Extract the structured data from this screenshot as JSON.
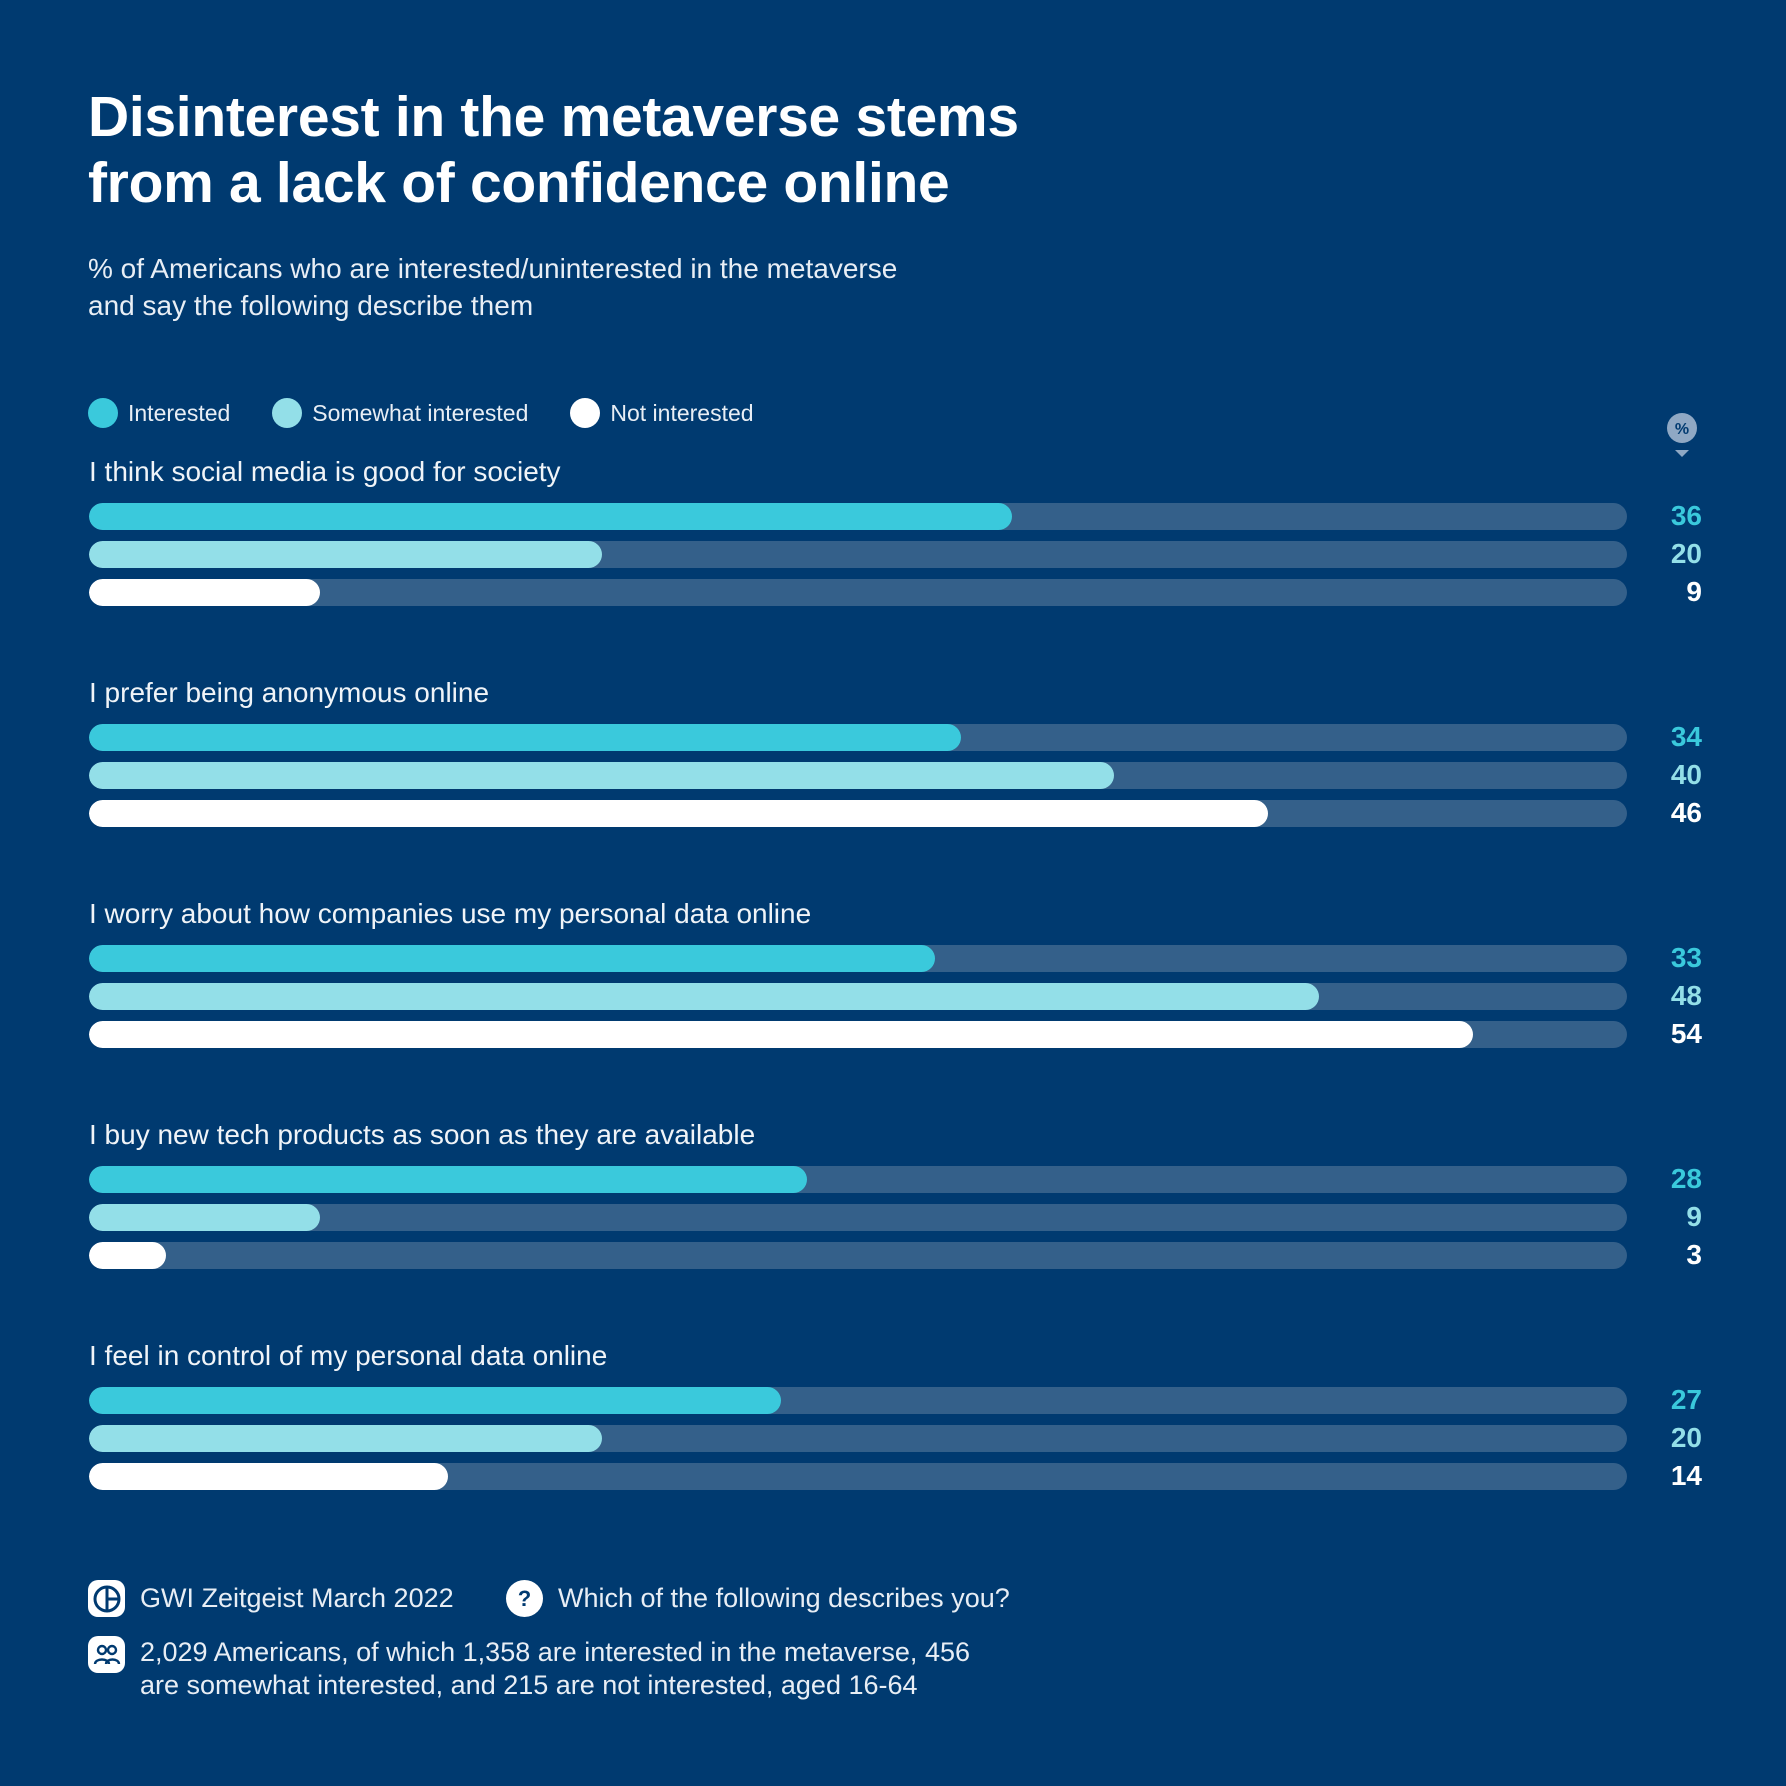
{
  "title": {
    "line1": "Disinterest in the metaverse stems",
    "line2": "from a lack of confidence online"
  },
  "subtitle": {
    "line1": "% of Americans who are interested/uninterested in the metaverse",
    "line2": "and say the following describe them"
  },
  "unit_badge": "%",
  "colors": {
    "background": "#003a70",
    "track": "#34608a",
    "interested": "#3ac9dc",
    "somewhat": "#93dfe8",
    "not_interested": "#ffffff"
  },
  "chart_data": {
    "type": "bar",
    "orientation": "horizontal",
    "xlim": [
      0,
      60
    ],
    "legend_position": "top-left",
    "series": [
      {
        "name": "Interested",
        "color": "#3ac9dc"
      },
      {
        "name": "Somewhat interested",
        "color": "#93dfe8"
      },
      {
        "name": "Not interested",
        "color": "#ffffff"
      }
    ],
    "groups": [
      {
        "label": "I think social media is good for society",
        "values": [
          36,
          20,
          9
        ]
      },
      {
        "label": "I prefer being anonymous online",
        "values": [
          34,
          40,
          46
        ]
      },
      {
        "label": "I worry about how companies use my personal data online",
        "values": [
          33,
          48,
          54
        ]
      },
      {
        "label": "I buy new tech products as soon as they are available",
        "values": [
          28,
          9,
          3
        ]
      },
      {
        "label": "I feel in control of my personal data online",
        "values": [
          27,
          20,
          14
        ]
      }
    ]
  },
  "footer": {
    "source": "GWI Zeitgeist March 2022",
    "question": "Which of the following describes you?",
    "question_icon": "?",
    "sample_line1": "2,029 Americans, of which 1,358 are interested in the metaverse, 456",
    "sample_line2": "are somewhat interested, and 215 are not interested, aged 16-64"
  }
}
